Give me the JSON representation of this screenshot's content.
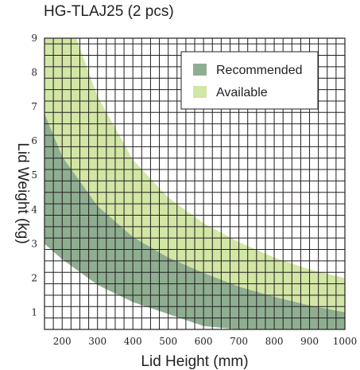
{
  "chart_data": {
    "type": "area",
    "title": "HG-TLAJ25 (2 pcs)",
    "xlabel": "Lid Height (mm)",
    "ylabel": "Lid Weight (kg)",
    "xlim": [
      150,
      1000
    ],
    "ylim": [
      0.5,
      9
    ],
    "x_ticks": [
      200,
      300,
      400,
      500,
      600,
      700,
      800,
      900,
      1000
    ],
    "y_ticks": [
      1,
      2,
      3,
      4,
      5,
      6,
      7,
      8,
      9
    ],
    "grid": true,
    "legend_position": "top-right",
    "series": [
      {
        "name": "Available",
        "color": "#d2e6a5",
        "x": [
          150,
          200,
          240,
          300,
          400,
          500,
          600,
          700,
          800,
          900,
          1000
        ],
        "upper": [
          9,
          9,
          9,
          7.3,
          5.45,
          4.35,
          3.6,
          3.05,
          2.6,
          2.25,
          2.0
        ],
        "lower": [
          3.0,
          2.55,
          2.25,
          1.9,
          1.45,
          1.15,
          0.9,
          0.72,
          0.6,
          0.5,
          0.5
        ]
      },
      {
        "name": "Recommended",
        "color": "#8fae91",
        "x": [
          150,
          200,
          300,
          400,
          500,
          600,
          700,
          800,
          900,
          1000
        ],
        "upper": [
          6.8,
          5.55,
          4.1,
          3.2,
          2.6,
          2.15,
          1.75,
          1.45,
          1.2,
          1.0
        ],
        "lower": [
          3.0,
          2.55,
          1.8,
          1.3,
          0.95,
          0.6,
          0.5,
          0.5,
          0.5,
          0.5
        ]
      }
    ]
  }
}
